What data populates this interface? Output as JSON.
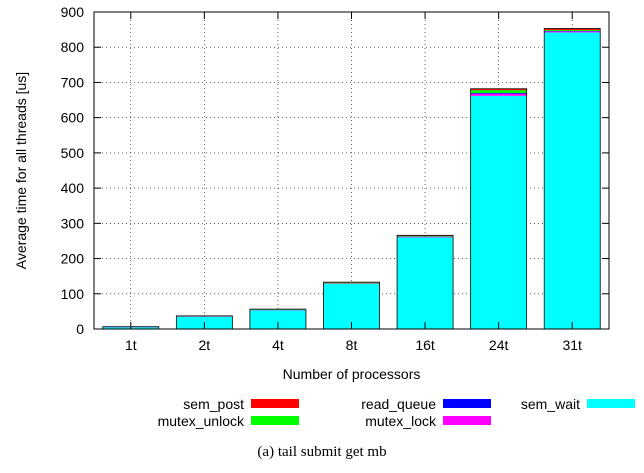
{
  "caption": "(a) tail submit get mb",
  "chart_data": {
    "type": "bar",
    "stacked": true,
    "xlabel": "Number of processors",
    "ylabel": "Average time for all threads [us]",
    "ylim": [
      0,
      900
    ],
    "yticks": [
      0,
      100,
      200,
      300,
      400,
      500,
      600,
      700,
      800,
      900
    ],
    "categories": [
      "1t",
      "2t",
      "4t",
      "8t",
      "16t",
      "24t",
      "31t"
    ],
    "grid": true,
    "legend_position": "below",
    "series": [
      {
        "name": "sem_wait",
        "color": "#00ffff",
        "values": [
          5,
          35,
          53,
          128,
          260,
          662,
          842
        ]
      },
      {
        "name": "mutex_lock",
        "color": "#ff00ff",
        "values": [
          0.5,
          0.5,
          1,
          1,
          2,
          6,
          3
        ]
      },
      {
        "name": "read_queue",
        "color": "#0000ff",
        "values": [
          0.2,
          0.3,
          0.5,
          0.5,
          0.5,
          2,
          1
        ]
      },
      {
        "name": "mutex_unlock",
        "color": "#00ff00",
        "values": [
          0.3,
          0.5,
          1,
          2,
          2,
          8,
          3
        ]
      },
      {
        "name": "sem_post",
        "color": "#ff0000",
        "values": [
          0.5,
          1,
          1,
          1.5,
          1.5,
          4,
          4
        ]
      }
    ]
  }
}
